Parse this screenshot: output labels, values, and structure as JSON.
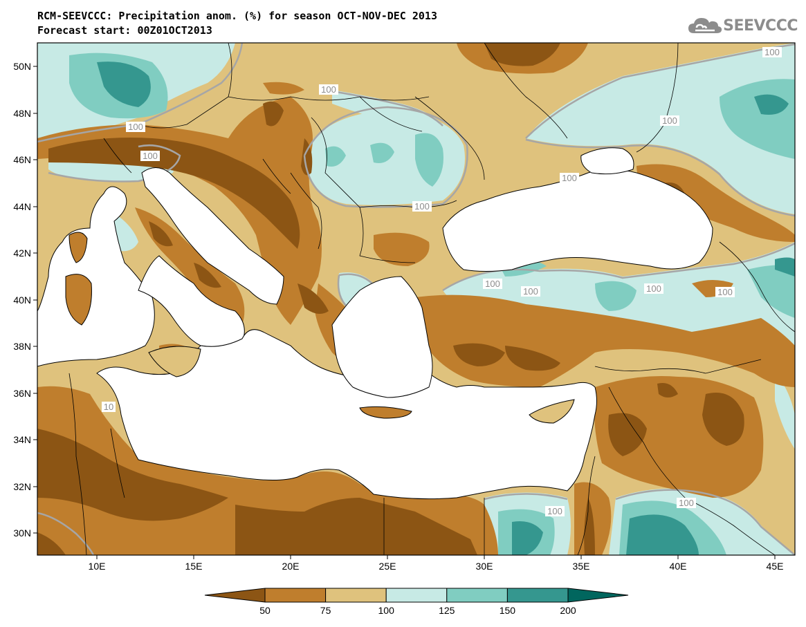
{
  "title_line1": "RCM-SEEVCCC: Precipitation anom. (%) for season OCT-NOV-DEC 2013",
  "title_line2": "Forecast start: 00Z01OCT2013",
  "logo_text": "SEEVCCC",
  "lat_labels": [
    "50N",
    "48N",
    "46N",
    "44N",
    "42N",
    "40N",
    "38N",
    "36N",
    "34N",
    "32N",
    "30N"
  ],
  "lon_labels": [
    "10E",
    "15E",
    "20E",
    "25E",
    "30E",
    "35E",
    "40E",
    "45E"
  ],
  "contour_labels": [
    "100",
    "100",
    "100",
    "100",
    "100",
    "100",
    "100",
    "100",
    "100",
    "100",
    "100",
    "100",
    "100",
    "10"
  ],
  "colorbar": {
    "tick_labels": [
      "50",
      "75",
      "100",
      "125",
      "150",
      "200"
    ],
    "colors": [
      "#8c5514",
      "#bf7e2d",
      "#dfc27d",
      "#c7eae5",
      "#80cdc1",
      "#35978f",
      "#01665e"
    ]
  },
  "colors": {
    "sea": "#ffffff",
    "border": "#000000",
    "contour_line": "#a6a6a6"
  }
}
